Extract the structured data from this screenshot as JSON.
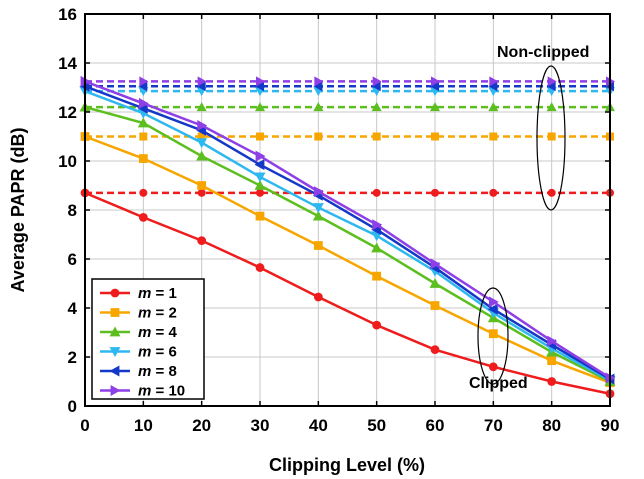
{
  "chart_data": {
    "type": "line",
    "title": "",
    "xlabel": "Clipping Level (%)",
    "ylabel": "Average PAPR (dB)",
    "xlim": [
      0,
      90
    ],
    "ylim": [
      0,
      16
    ],
    "x_ticks": [
      0,
      10,
      20,
      30,
      40,
      50,
      60,
      70,
      80,
      90
    ],
    "y_ticks": [
      0,
      2,
      4,
      6,
      8,
      10,
      12,
      14,
      16
    ],
    "grid": true,
    "legend_position": "bottom-left",
    "x": [
      0,
      10,
      20,
      30,
      40,
      50,
      60,
      70,
      80,
      90
    ],
    "series": [
      {
        "name": "m = 1",
        "legend_var": "m",
        "legend_val": " = 1",
        "color": "#ee1c1c",
        "marker": "circle",
        "clipped": [
          8.7,
          7.7,
          6.75,
          5.65,
          4.45,
          3.3,
          2.3,
          1.6,
          1.0,
          0.5
        ],
        "non_clipped": 8.7
      },
      {
        "name": "m = 2",
        "legend_var": "m",
        "legend_val": " = 2",
        "color": "#f7a600",
        "marker": "square",
        "clipped": [
          11.0,
          10.1,
          9.0,
          7.75,
          6.55,
          5.3,
          4.1,
          2.95,
          1.85,
          0.95
        ],
        "non_clipped": 11.0
      },
      {
        "name": "m = 4",
        "legend_var": "m",
        "legend_val": " = 4",
        "color": "#5cbf1f",
        "marker": "triangle-up",
        "clipped": [
          12.2,
          11.55,
          10.2,
          9.0,
          7.75,
          6.45,
          5.0,
          3.6,
          2.2,
          1.0
        ],
        "non_clipped": 12.2
      },
      {
        "name": "m = 6",
        "legend_var": "m",
        "legend_val": " = 6",
        "color": "#2fb8f0",
        "marker": "triangle-down",
        "clipped": [
          12.85,
          11.95,
          10.75,
          9.35,
          8.1,
          6.95,
          5.5,
          3.8,
          2.35,
          1.05
        ],
        "non_clipped": 12.85
      },
      {
        "name": "m = 8",
        "legend_var": "m",
        "legend_val": " = 8",
        "color": "#1438c8",
        "marker": "triangle-left",
        "clipped": [
          13.05,
          12.15,
          11.25,
          9.85,
          8.6,
          7.2,
          5.65,
          3.95,
          2.5,
          1.1
        ],
        "non_clipped": 13.05
      },
      {
        "name": "m = 10",
        "legend_var": "m",
        "legend_val": " = 10",
        "color": "#8e3fe6",
        "marker": "triangle-right",
        "clipped": [
          13.25,
          12.35,
          11.45,
          10.2,
          8.75,
          7.4,
          5.8,
          4.25,
          2.65,
          1.15
        ],
        "non_clipped": 13.25
      }
    ],
    "annotations": [
      {
        "text": "Non-clipped",
        "x": 80,
        "y": 14.2
      },
      {
        "text": "Clipped",
        "x": 74,
        "y": 0.95
      }
    ]
  }
}
